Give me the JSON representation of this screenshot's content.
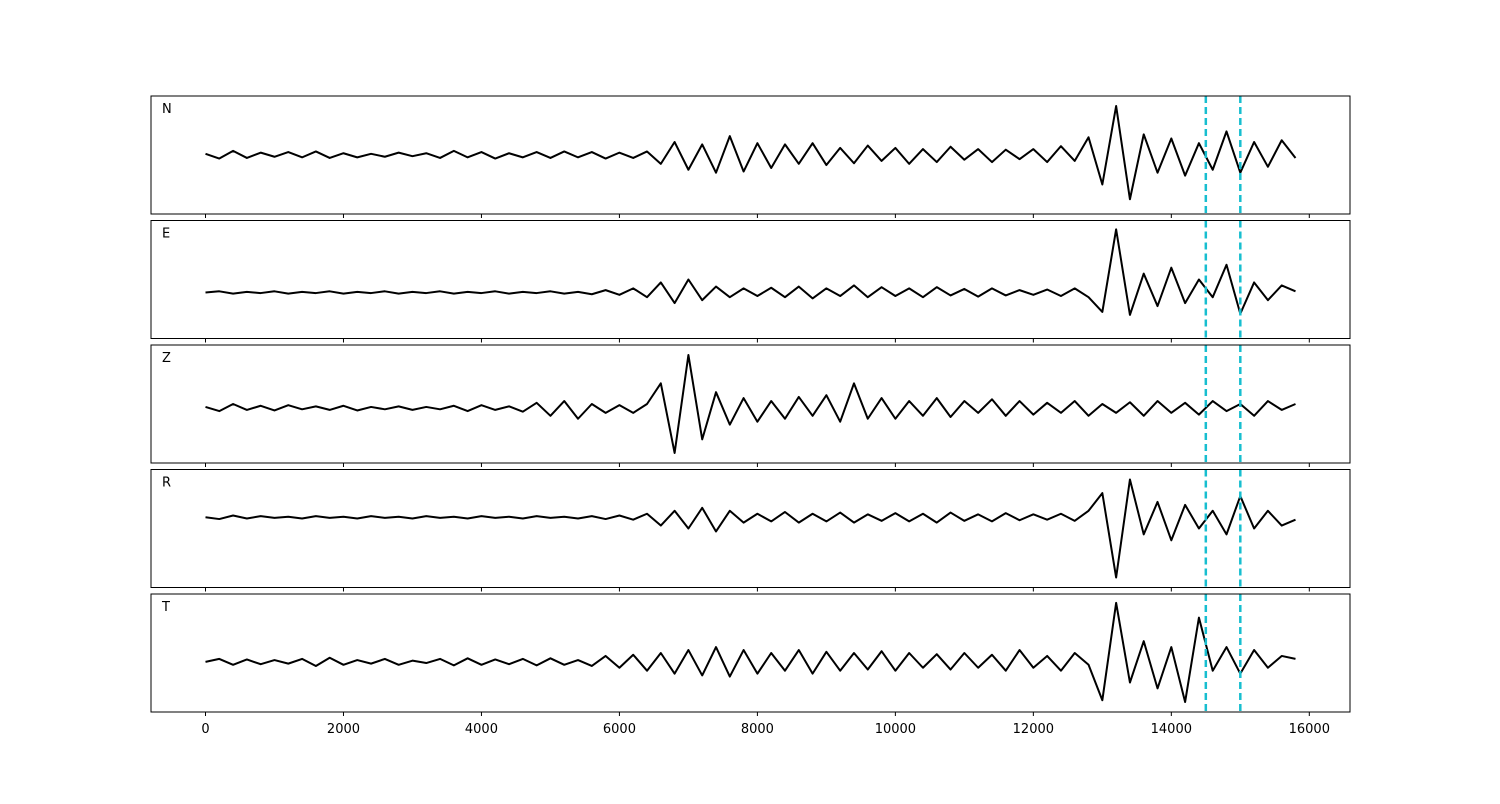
{
  "chart_data": {
    "type": "line",
    "layout": "stacked",
    "x": [
      0,
      200,
      400,
      600,
      800,
      1000,
      1200,
      1400,
      1600,
      1800,
      2000,
      2200,
      2400,
      2600,
      2800,
      3000,
      3200,
      3400,
      3600,
      3800,
      4000,
      4200,
      4400,
      4600,
      4800,
      5000,
      5200,
      5400,
      5600,
      5800,
      6000,
      6200,
      6400,
      6600,
      6800,
      7000,
      7200,
      7400,
      7600,
      7800,
      8000,
      8200,
      8400,
      8600,
      8800,
      9000,
      9200,
      9400,
      9600,
      9800,
      10000,
      10200,
      10400,
      10600,
      10800,
      11000,
      11200,
      11400,
      11600,
      11800,
      12000,
      12200,
      12400,
      12600,
      12800,
      13000,
      13200,
      13400,
      13600,
      13800,
      14000,
      14200,
      14400,
      14600,
      14800,
      15000,
      15200,
      15400,
      15600,
      15800
    ],
    "xlim": [
      -790,
      16590
    ],
    "xticks": [
      0,
      2000,
      4000,
      6000,
      8000,
      10000,
      12000,
      14000,
      16000
    ],
    "ylim": [
      -1,
      1
    ],
    "vlines": [
      14500,
      15000
    ],
    "vline_color": "#17becf",
    "series": [
      {
        "name": "N",
        "color": "#000000",
        "values": [
          0.02,
          -0.06,
          0.07,
          -0.05,
          0.04,
          -0.03,
          0.05,
          -0.04,
          0.06,
          -0.05,
          0.03,
          -0.04,
          0.02,
          -0.03,
          0.04,
          -0.02,
          0.03,
          -0.05,
          0.07,
          -0.04,
          0.05,
          -0.06,
          0.03,
          -0.04,
          0.05,
          -0.05,
          0.06,
          -0.04,
          0.05,
          -0.06,
          0.04,
          -0.05,
          0.06,
          -0.15,
          0.22,
          -0.25,
          0.18,
          -0.3,
          0.32,
          -0.28,
          0.2,
          -0.22,
          0.18,
          -0.15,
          0.2,
          -0.17,
          0.12,
          -0.14,
          0.16,
          -0.1,
          0.12,
          -0.15,
          0.1,
          -0.12,
          0.14,
          -0.08,
          0.1,
          -0.12,
          0.09,
          -0.07,
          0.1,
          -0.12,
          0.15,
          -0.1,
          0.3,
          -0.5,
          0.83,
          -0.75,
          0.35,
          -0.3,
          0.28,
          -0.35,
          0.2,
          -0.25,
          0.4,
          -0.3,
          0.22,
          -0.2,
          0.25,
          -0.05
        ]
      },
      {
        "name": "E",
        "color": "#000000",
        "values": [
          -0.22,
          -0.2,
          -0.24,
          -0.21,
          -0.23,
          -0.2,
          -0.24,
          -0.21,
          -0.23,
          -0.2,
          -0.24,
          -0.21,
          -0.23,
          -0.2,
          -0.24,
          -0.21,
          -0.23,
          -0.2,
          -0.24,
          -0.21,
          -0.23,
          -0.2,
          -0.24,
          -0.21,
          -0.23,
          -0.2,
          -0.24,
          -0.21,
          -0.25,
          -0.18,
          -0.26,
          -0.15,
          -0.3,
          -0.05,
          -0.4,
          0.0,
          -0.35,
          -0.12,
          -0.3,
          -0.15,
          -0.28,
          -0.14,
          -0.3,
          -0.12,
          -0.32,
          -0.15,
          -0.28,
          -0.1,
          -0.3,
          -0.13,
          -0.28,
          -0.15,
          -0.3,
          -0.13,
          -0.27,
          -0.16,
          -0.29,
          -0.15,
          -0.27,
          -0.18,
          -0.26,
          -0.17,
          -0.28,
          -0.15,
          -0.3,
          -0.55,
          0.85,
          -0.6,
          0.1,
          -0.45,
          0.2,
          -0.4,
          0.0,
          -0.3,
          0.25,
          -0.58,
          -0.05,
          -0.35,
          -0.1,
          -0.2
        ]
      },
      {
        "name": "Z",
        "color": "#000000",
        "values": [
          -0.05,
          -0.12,
          0.0,
          -0.1,
          -0.03,
          -0.11,
          -0.02,
          -0.09,
          -0.04,
          -0.1,
          -0.03,
          -0.11,
          -0.05,
          -0.09,
          -0.04,
          -0.1,
          -0.05,
          -0.09,
          -0.03,
          -0.12,
          -0.02,
          -0.1,
          -0.04,
          -0.13,
          0.02,
          -0.2,
          0.05,
          -0.25,
          0.0,
          -0.15,
          -0.02,
          -0.15,
          0.0,
          0.35,
          -0.83,
          0.83,
          -0.6,
          0.2,
          -0.35,
          0.1,
          -0.3,
          0.05,
          -0.25,
          0.12,
          -0.2,
          0.15,
          -0.3,
          0.35,
          -0.25,
          0.1,
          -0.25,
          0.05,
          -0.2,
          0.1,
          -0.22,
          0.05,
          -0.15,
          0.08,
          -0.2,
          0.05,
          -0.18,
          0.02,
          -0.15,
          0.05,
          -0.2,
          0.0,
          -0.15,
          0.03,
          -0.2,
          0.05,
          -0.15,
          0.02,
          -0.18,
          0.05,
          -0.12,
          0.0,
          -0.2,
          0.05,
          -0.1,
          0.0
        ]
      },
      {
        "name": "R",
        "color": "#000000",
        "values": [
          0.19,
          0.16,
          0.22,
          0.17,
          0.21,
          0.18,
          0.2,
          0.17,
          0.21,
          0.18,
          0.2,
          0.17,
          0.21,
          0.18,
          0.2,
          0.17,
          0.21,
          0.18,
          0.2,
          0.17,
          0.21,
          0.18,
          0.2,
          0.17,
          0.21,
          0.18,
          0.2,
          0.17,
          0.21,
          0.16,
          0.22,
          0.15,
          0.25,
          0.05,
          0.3,
          0.0,
          0.35,
          -0.05,
          0.3,
          0.1,
          0.25,
          0.12,
          0.28,
          0.1,
          0.25,
          0.12,
          0.27,
          0.1,
          0.24,
          0.13,
          0.26,
          0.12,
          0.25,
          0.1,
          0.27,
          0.13,
          0.24,
          0.12,
          0.26,
          0.14,
          0.24,
          0.15,
          0.25,
          0.13,
          0.3,
          0.6,
          -0.83,
          0.83,
          -0.1,
          0.45,
          -0.2,
          0.4,
          0.0,
          0.3,
          -0.1,
          0.55,
          0.0,
          0.3,
          0.05,
          0.15
        ]
      },
      {
        "name": "T",
        "color": "#000000",
        "values": [
          -0.15,
          -0.1,
          -0.2,
          -0.11,
          -0.19,
          -0.12,
          -0.18,
          -0.1,
          -0.22,
          -0.08,
          -0.2,
          -0.12,
          -0.18,
          -0.1,
          -0.2,
          -0.13,
          -0.17,
          -0.1,
          -0.21,
          -0.09,
          -0.2,
          -0.11,
          -0.19,
          -0.1,
          -0.21,
          -0.09,
          -0.2,
          -0.12,
          -0.22,
          -0.05,
          -0.25,
          -0.03,
          -0.3,
          0.0,
          -0.35,
          0.05,
          -0.38,
          0.1,
          -0.4,
          0.05,
          -0.35,
          0.0,
          -0.3,
          0.05,
          -0.35,
          0.02,
          -0.3,
          0.0,
          -0.28,
          0.03,
          -0.3,
          0.0,
          -0.25,
          -0.02,
          -0.28,
          0.0,
          -0.25,
          -0.03,
          -0.3,
          0.05,
          -0.25,
          -0.05,
          -0.3,
          0.0,
          -0.2,
          -0.8,
          0.85,
          -0.5,
          0.2,
          -0.6,
          0.1,
          -0.83,
          0.6,
          -0.3,
          0.1,
          -0.35,
          0.05,
          -0.25,
          -0.05,
          -0.1
        ]
      }
    ]
  }
}
